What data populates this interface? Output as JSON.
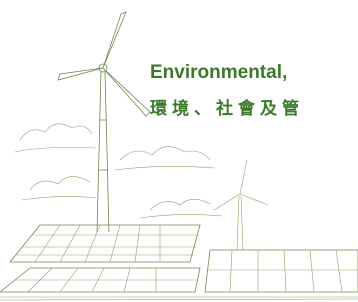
{
  "heading": {
    "title": "Environmental,",
    "subtitle": "環境、社會及管"
  }
}
